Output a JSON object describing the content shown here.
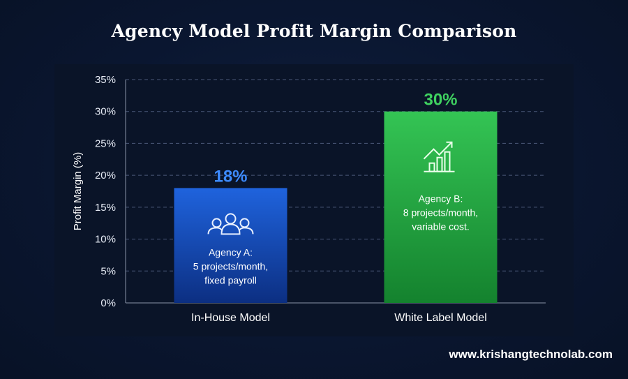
{
  "chart_data": {
    "type": "bar",
    "title": "Agency Model Profit Margin Comparison",
    "ylabel": "Profit Margin (%)",
    "xlabel": "",
    "ylim": [
      0,
      35
    ],
    "yticks": [
      0,
      5,
      10,
      15,
      20,
      25,
      30,
      35
    ],
    "ytick_labels": [
      "0%",
      "5%",
      "10%",
      "15%",
      "20%",
      "25%",
      "30%",
      "35%"
    ],
    "grid": "horizontal dashed",
    "categories": [
      "In-House Model",
      "White Label Model"
    ],
    "values": [
      18,
      30
    ],
    "data_labels": [
      "18%",
      "30%"
    ],
    "colors": [
      "#1f5fd6",
      "#2fbf4f"
    ],
    "label_colors": [
      "#3d8bff",
      "#3fd160"
    ],
    "annotations": [
      {
        "icon": "team-icon",
        "lines": [
          "Agency A:",
          "5 projects/month,",
          "fixed payroll"
        ]
      },
      {
        "icon": "growth-chart-icon",
        "lines": [
          "Agency B:",
          "8 projects/month,",
          "variable cost."
        ]
      }
    ]
  },
  "footer": {
    "website": "www.krishangtechnolab.com"
  }
}
